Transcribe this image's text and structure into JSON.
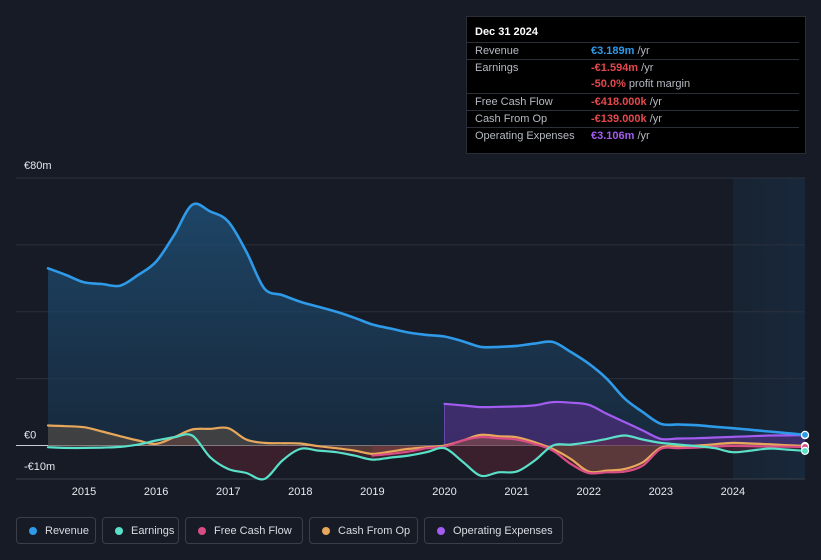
{
  "tooltip": {
    "date": "Dec 31 2024",
    "rows": [
      {
        "label": "Revenue",
        "value": "€3.189m",
        "unit": "/yr",
        "color": "#2f9ae8"
      },
      {
        "label": "Earnings",
        "value": "-€1.594m",
        "unit": "/yr",
        "color": "#e5484d"
      },
      {
        "label": "",
        "value": "-50.0%",
        "unit": "profit margin",
        "color": "#e5484d"
      },
      {
        "label": "Free Cash Flow",
        "value": "-€418.000k",
        "unit": "/yr",
        "color": "#e5484d"
      },
      {
        "label": "Cash From Op",
        "value": "-€139.000k",
        "unit": "/yr",
        "color": "#e5484d"
      },
      {
        "label": "Operating Expenses",
        "value": "€3.106m",
        "unit": "/yr",
        "color": "#a35cf0"
      }
    ]
  },
  "legend": [
    {
      "label": "Revenue",
      "color": "#2f9ae8"
    },
    {
      "label": "Earnings",
      "color": "#59e0c8"
    },
    {
      "label": "Free Cash Flow",
      "color": "#d94d85"
    },
    {
      "label": "Cash From Op",
      "color": "#e8a85c"
    },
    {
      "label": "Operating Expenses",
      "color": "#a35cf0"
    }
  ],
  "chart_data": {
    "type": "area",
    "title": "",
    "xlabel": "",
    "ylabel": "",
    "y_tick_labels": [
      "€80m",
      "€0",
      "-€10m"
    ],
    "x_tick_labels": [
      "2015",
      "2016",
      "2017",
      "2018",
      "2019",
      "2020",
      "2021",
      "2022",
      "2023",
      "2024"
    ],
    "ylim": [
      -10,
      80
    ],
    "xlim": [
      2014.5,
      2025.0
    ],
    "forecast_start": 2024.0,
    "series": [
      {
        "name": "Revenue",
        "color": "#2f9ae8",
        "x": [
          2014.5,
          2014.75,
          2015.0,
          2015.25,
          2015.5,
          2015.75,
          2016.0,
          2016.25,
          2016.5,
          2016.75,
          2017.0,
          2017.25,
          2017.5,
          2017.75,
          2018.0,
          2018.25,
          2018.5,
          2018.75,
          2019.0,
          2019.25,
          2019.5,
          2019.75,
          2020.0,
          2020.25,
          2020.5,
          2020.75,
          2021.0,
          2021.25,
          2021.5,
          2021.75,
          2022.0,
          2022.25,
          2022.5,
          2022.75,
          2023.0,
          2023.25,
          2023.5,
          2023.75,
          2024.0,
          2024.25,
          2024.5,
          2024.75,
          2025.0
        ],
        "values": [
          53,
          51,
          48.8,
          48.3,
          47.8,
          51,
          55,
          63,
          72,
          70,
          67,
          58,
          47,
          45,
          43,
          41.5,
          40,
          38.2,
          36.2,
          35,
          33.8,
          33.1,
          32.6,
          31.2,
          29.5,
          29.5,
          29.8,
          30.5,
          31,
          28,
          24.5,
          20,
          14,
          10,
          6.5,
          6.3,
          6.1,
          5.6,
          5.2,
          4.7,
          4.2,
          3.7,
          3.2
        ]
      },
      {
        "name": "Earnings",
        "color": "#59e0c8",
        "x": [
          2014.5,
          2014.75,
          2015.0,
          2015.25,
          2015.5,
          2015.75,
          2016.0,
          2016.25,
          2016.5,
          2016.75,
          2017.0,
          2017.25,
          2017.5,
          2017.75,
          2018.0,
          2018.25,
          2018.5,
          2018.75,
          2019.0,
          2019.25,
          2019.5,
          2019.75,
          2020.0,
          2020.25,
          2020.5,
          2020.75,
          2021.0,
          2021.25,
          2021.5,
          2021.75,
          2022.0,
          2022.25,
          2022.5,
          2022.75,
          2023.0,
          2023.25,
          2023.5,
          2023.75,
          2024.0,
          2024.25,
          2024.5,
          2024.75,
          2025.0
        ],
        "values": [
          -0.5,
          -0.7,
          -0.7,
          -0.6,
          -0.4,
          0.3,
          1.5,
          2.5,
          3.0,
          -3.5,
          -7.0,
          -8.2,
          -10.0,
          -4.5,
          -1.0,
          -1.5,
          -2.0,
          -3.0,
          -4.2,
          -3.6,
          -3.0,
          -2.0,
          -0.8,
          -4.8,
          -9.0,
          -8.0,
          -7.8,
          -4.5,
          0.0,
          0.3,
          1.0,
          2.0,
          3.0,
          1.8,
          0.8,
          0.3,
          -0.2,
          -0.8,
          -2.0,
          -1.5,
          -0.9,
          -1.2,
          -1.6
        ]
      },
      {
        "name": "Free Cash Flow",
        "color": "#d94d85",
        "x": [
          2019.0,
          2019.25,
          2019.5,
          2019.75,
          2020.0,
          2020.25,
          2020.5,
          2020.75,
          2021.0,
          2021.25,
          2021.5,
          2021.75,
          2022.0,
          2022.25,
          2022.5,
          2022.75,
          2023.0,
          2023.25,
          2023.5,
          2023.75,
          2024.0,
          2024.25,
          2024.5,
          2024.75,
          2025.0
        ],
        "values": [
          -3.0,
          -2.5,
          -1.8,
          -0.8,
          -0.3,
          1.5,
          2.5,
          2.2,
          1.8,
          0.5,
          -1.5,
          -5.5,
          -8.2,
          -8.0,
          -7.8,
          -6.0,
          -1.0,
          -0.8,
          -0.6,
          -0.3,
          -0.1,
          -0.2,
          -0.3,
          -0.35,
          -0.42
        ]
      },
      {
        "name": "Cash From Op",
        "color": "#e8a85c",
        "x": [
          2014.5,
          2014.75,
          2015.0,
          2015.25,
          2015.5,
          2015.75,
          2016.0,
          2016.25,
          2016.5,
          2016.75,
          2017.0,
          2017.25,
          2017.5,
          2017.75,
          2018.0,
          2018.25,
          2018.5,
          2018.75,
          2019.0,
          2019.25,
          2019.5,
          2019.75,
          2020.0,
          2020.25,
          2020.5,
          2020.75,
          2021.0,
          2021.25,
          2021.5,
          2021.75,
          2022.0,
          2022.25,
          2022.5,
          2022.75,
          2023.0,
          2023.25,
          2023.5,
          2023.75,
          2024.0,
          2024.25,
          2024.5,
          2024.75,
          2025.0
        ],
        "values": [
          6.0,
          5.8,
          5.5,
          4.2,
          2.8,
          1.5,
          0.5,
          2.5,
          4.8,
          5.0,
          5.2,
          1.8,
          0.8,
          0.7,
          0.6,
          -0.2,
          -0.8,
          -1.5,
          -2.5,
          -1.8,
          -1.0,
          -0.5,
          0.0,
          1.5,
          3.2,
          2.8,
          2.5,
          1.0,
          -1.0,
          -4.0,
          -7.8,
          -7.5,
          -7.0,
          -5.0,
          -0.6,
          -0.3,
          0.0,
          0.4,
          0.8,
          0.6,
          0.4,
          0.1,
          -0.14
        ]
      },
      {
        "name": "Operating Expenses",
        "color": "#a35cf0",
        "x": [
          2020.0,
          2020.25,
          2020.5,
          2020.75,
          2021.0,
          2021.25,
          2021.5,
          2021.75,
          2022.0,
          2022.25,
          2022.5,
          2022.75,
          2023.0,
          2023.25,
          2023.5,
          2023.75,
          2024.0,
          2024.25,
          2024.5,
          2024.75,
          2025.0
        ],
        "values": [
          12.5,
          12.0,
          11.5,
          11.6,
          11.7,
          12.0,
          13.0,
          12.8,
          12.2,
          9.5,
          7.0,
          4.5,
          2.0,
          2.1,
          2.2,
          2.4,
          2.6,
          2.8,
          3.0,
          3.05,
          3.1
        ]
      }
    ]
  }
}
